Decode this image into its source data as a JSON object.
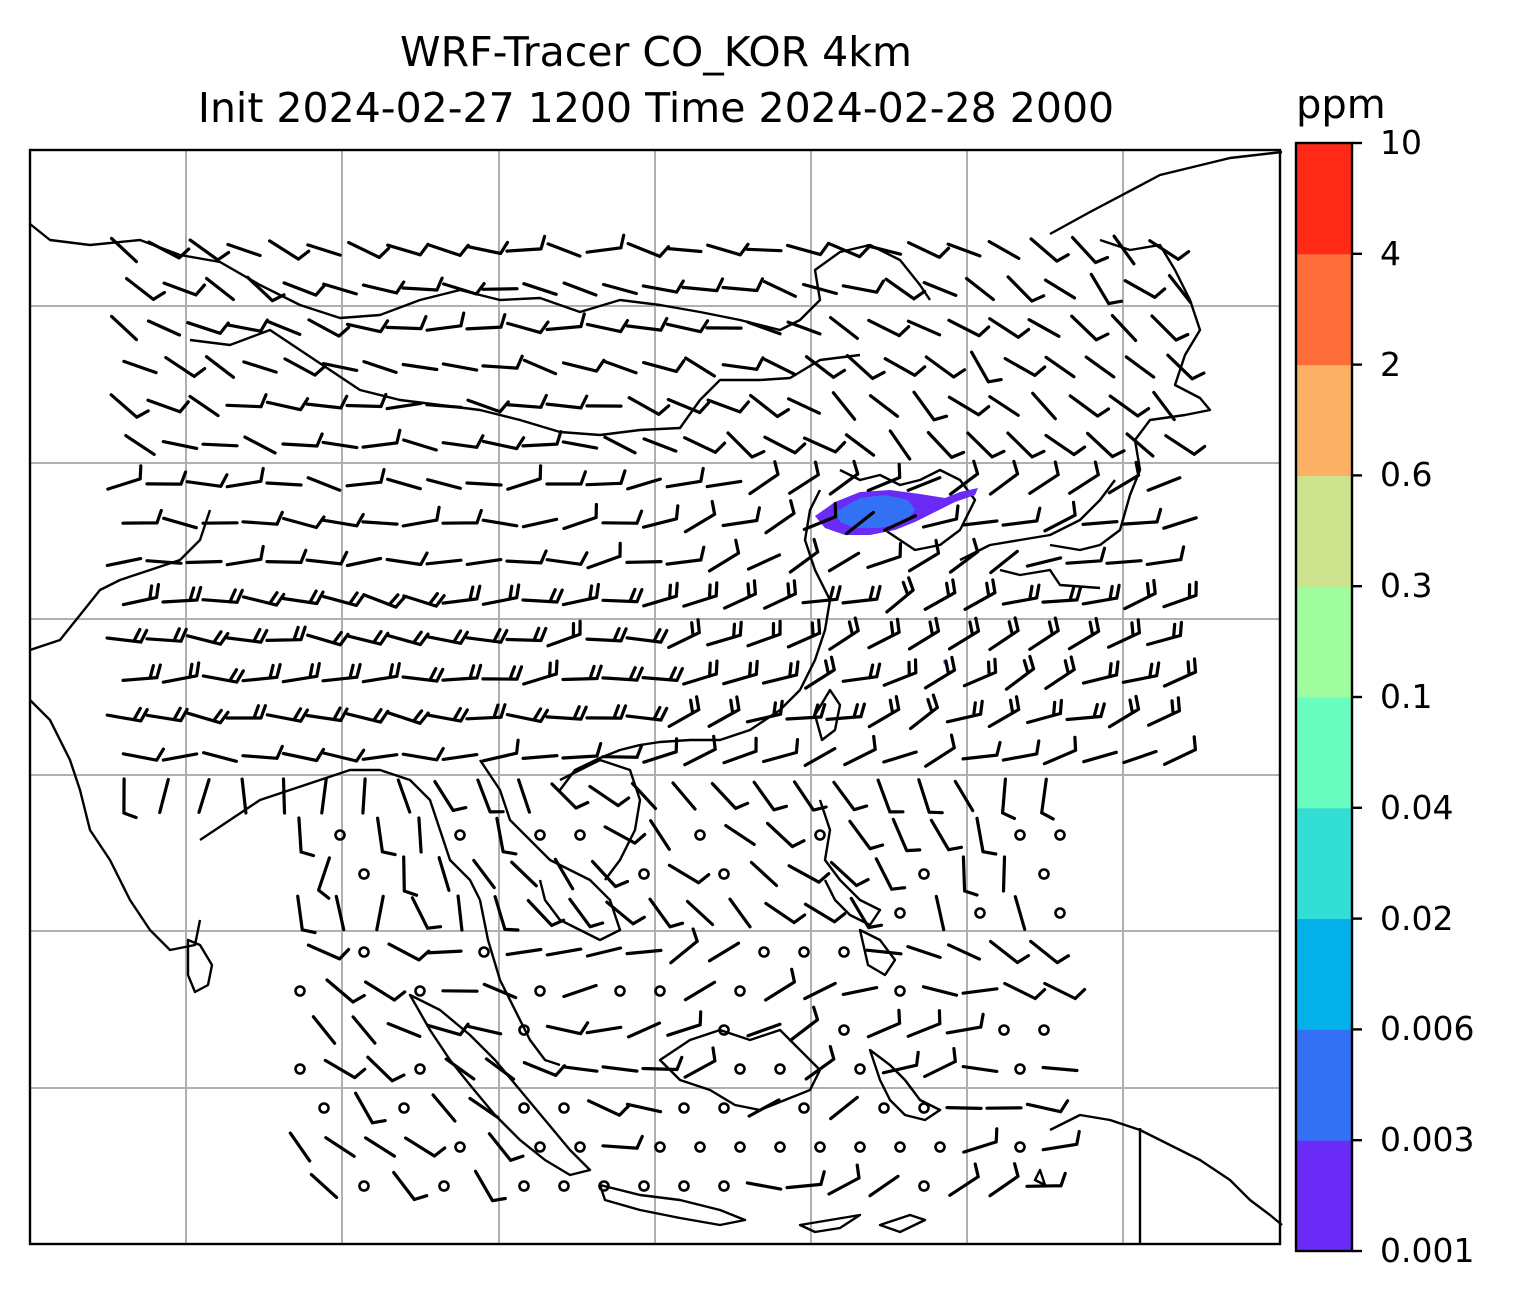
{
  "title": {
    "line1": "WRF-Tracer CO_KOR 4km",
    "line2": "Init 2024-02-27 1200 Time 2024-02-28 2000"
  },
  "colorbar": {
    "unit": "ppm",
    "levels": [
      "0.001",
      "0.003",
      "0.006",
      "0.02",
      "0.04",
      "0.1",
      "0.3",
      "0.6",
      "2",
      "4",
      "10"
    ],
    "colors": [
      "#6a2bf7",
      "#3470f3",
      "#04b0ea",
      "#33dfd5",
      "#69fdbf",
      "#9ffc9f",
      "#cde28c",
      "#fbb065",
      "#fe6d3a",
      "#fe2a17"
    ]
  },
  "plume": {
    "level_range": "0.001–0.006 ppm",
    "colors": [
      "#6a2bf7",
      "#3470f3"
    ]
  },
  "map": {
    "gridlines": true,
    "wind_barbs": true,
    "coastlines": true
  }
}
